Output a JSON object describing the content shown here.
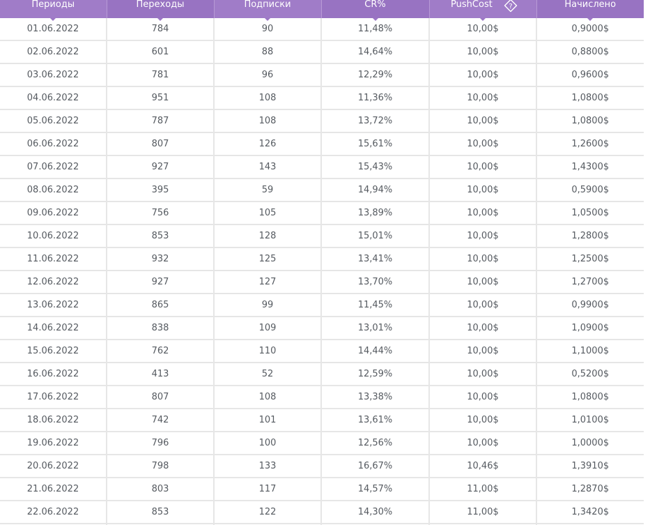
{
  "table": {
    "headers": {
      "periods": "Периоды",
      "clicks": "Переходы",
      "subscriptions": "Подписки",
      "cr": "CR%",
      "pushcost": "PushCost",
      "accrued": "Начислено"
    },
    "pushcost_help_icon": "question-diamond-icon",
    "rows": [
      [
        "01.06.2022",
        "784",
        "90",
        "11,48%",
        "10,00$",
        "0,9000$"
      ],
      [
        "02.06.2022",
        "601",
        "88",
        "14,64%",
        "10,00$",
        "0,8800$"
      ],
      [
        "03.06.2022",
        "781",
        "96",
        "12,29%",
        "10,00$",
        "0,9600$"
      ],
      [
        "04.06.2022",
        "951",
        "108",
        "11,36%",
        "10,00$",
        "1,0800$"
      ],
      [
        "05.06.2022",
        "787",
        "108",
        "13,72%",
        "10,00$",
        "1,0800$"
      ],
      [
        "06.06.2022",
        "807",
        "126",
        "15,61%",
        "10,00$",
        "1,2600$"
      ],
      [
        "07.06.2022",
        "927",
        "143",
        "15,43%",
        "10,00$",
        "1,4300$"
      ],
      [
        "08.06.2022",
        "395",
        "59",
        "14,94%",
        "10,00$",
        "0,5900$"
      ],
      [
        "09.06.2022",
        "756",
        "105",
        "13,89%",
        "10,00$",
        "1,0500$"
      ],
      [
        "10.06.2022",
        "853",
        "128",
        "15,01%",
        "10,00$",
        "1,2800$"
      ],
      [
        "11.06.2022",
        "932",
        "125",
        "13,41%",
        "10,00$",
        "1,2500$"
      ],
      [
        "12.06.2022",
        "927",
        "127",
        "13,70%",
        "10,00$",
        "1,2700$"
      ],
      [
        "13.06.2022",
        "865",
        "99",
        "11,45%",
        "10,00$",
        "0,9900$"
      ],
      [
        "14.06.2022",
        "838",
        "109",
        "13,01%",
        "10,00$",
        "1,0900$"
      ],
      [
        "15.06.2022",
        "762",
        "110",
        "14,44%",
        "10,00$",
        "1,1000$"
      ],
      [
        "16.06.2022",
        "413",
        "52",
        "12,59%",
        "10,00$",
        "0,5200$"
      ],
      [
        "17.06.2022",
        "807",
        "108",
        "13,38%",
        "10,00$",
        "1,0800$"
      ],
      [
        "18.06.2022",
        "742",
        "101",
        "13,61%",
        "10,00$",
        "1,0100$"
      ],
      [
        "19.06.2022",
        "796",
        "100",
        "12,56%",
        "10,00$",
        "1,0000$"
      ],
      [
        "20.06.2022",
        "798",
        "133",
        "16,67%",
        "10,46$",
        "1,3910$"
      ],
      [
        "21.06.2022",
        "803",
        "117",
        "14,57%",
        "11,00$",
        "1,2870$"
      ],
      [
        "22.06.2022",
        "853",
        "122",
        "14,30%",
        "11,00$",
        "1,3420$"
      ],
      [
        "",
        "",
        "",
        "",
        "",
        ""
      ]
    ]
  },
  "colors": {
    "header_bg": "#a07cc8",
    "header_bg_alt": "#9873c2",
    "header_text": "#ffffff",
    "cell_text": "#555a60",
    "grid": "#e6e6e6"
  }
}
